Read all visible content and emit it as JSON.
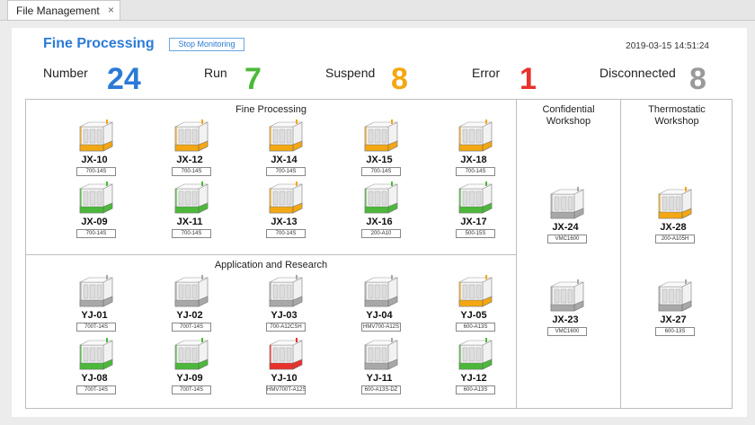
{
  "tab": {
    "label": "File Management",
    "close": "×"
  },
  "header": {
    "title": "Fine Processing",
    "stop_button": "Stop Monitoring",
    "timestamp": "2019-03-15 14:51:24"
  },
  "stats": [
    {
      "label": "Number",
      "value": "24",
      "color": "#2b7bd6"
    },
    {
      "label": "Run",
      "value": "7",
      "color": "#4cb83a"
    },
    {
      "label": "Suspend",
      "value": "8",
      "color": "#f3a712"
    },
    {
      "label": "Error",
      "value": "1",
      "color": "#e8312c"
    },
    {
      "label": "Disconnected",
      "value": "8",
      "color": "#9a9a9a"
    }
  ],
  "status_colors": {
    "run": "#4cb83a",
    "suspend": "#f3a712",
    "error": "#e8312c",
    "disconnected": "#a8a8a8"
  },
  "sections": {
    "fine": {
      "title": "Fine Processing"
    },
    "app": {
      "title": "Application and Research"
    },
    "confidential": {
      "title_line1": "Confidential",
      "title_line2": "Workshop"
    },
    "thermostatic": {
      "title_line1": "Thermostatic",
      "title_line2": "Workshop"
    }
  },
  "machines": [
    {
      "id": "JX-10",
      "model": "700-14S",
      "status": "suspend"
    },
    {
      "id": "JX-12",
      "model": "700-14S",
      "status": "suspend"
    },
    {
      "id": "JX-14",
      "model": "700-14S",
      "status": "suspend"
    },
    {
      "id": "JX-15",
      "model": "700-14S",
      "status": "suspend"
    },
    {
      "id": "JX-18",
      "model": "700-14S",
      "status": "suspend"
    },
    {
      "id": "JX-09",
      "model": "700-14S",
      "status": "run"
    },
    {
      "id": "JX-11",
      "model": "700-14S",
      "status": "run"
    },
    {
      "id": "JX-13",
      "model": "700-14S",
      "status": "suspend"
    },
    {
      "id": "JX-16",
      "model": "200-A10",
      "status": "run"
    },
    {
      "id": "JX-17",
      "model": "500-15S",
      "status": "run"
    },
    {
      "id": "YJ-01",
      "model": "700T-14S",
      "status": "disconnected"
    },
    {
      "id": "YJ-02",
      "model": "700T-14S",
      "status": "disconnected"
    },
    {
      "id": "YJ-03",
      "model": "700-A12CSH",
      "status": "disconnected"
    },
    {
      "id": "YJ-04",
      "model": "HMV700-A12S",
      "status": "disconnected"
    },
    {
      "id": "YJ-05",
      "model": "600-A13S",
      "status": "suspend"
    },
    {
      "id": "YJ-08",
      "model": "700T-14S",
      "status": "run"
    },
    {
      "id": "YJ-09",
      "model": "700T-14S",
      "status": "run"
    },
    {
      "id": "YJ-10",
      "model": "HMV700T-A12S",
      "status": "error"
    },
    {
      "id": "YJ-11",
      "model": "600-A13S-DZ",
      "status": "disconnected"
    },
    {
      "id": "YJ-12",
      "model": "600-A13S",
      "status": "run"
    },
    {
      "id": "JX-24",
      "model": "VMC1600",
      "status": "disconnected"
    },
    {
      "id": "JX-23",
      "model": "VMC1600",
      "status": "disconnected"
    },
    {
      "id": "JX-28",
      "model": "200-A105H",
      "status": "suspend"
    },
    {
      "id": "JX-27",
      "model": "600-13S",
      "status": "disconnected"
    }
  ]
}
